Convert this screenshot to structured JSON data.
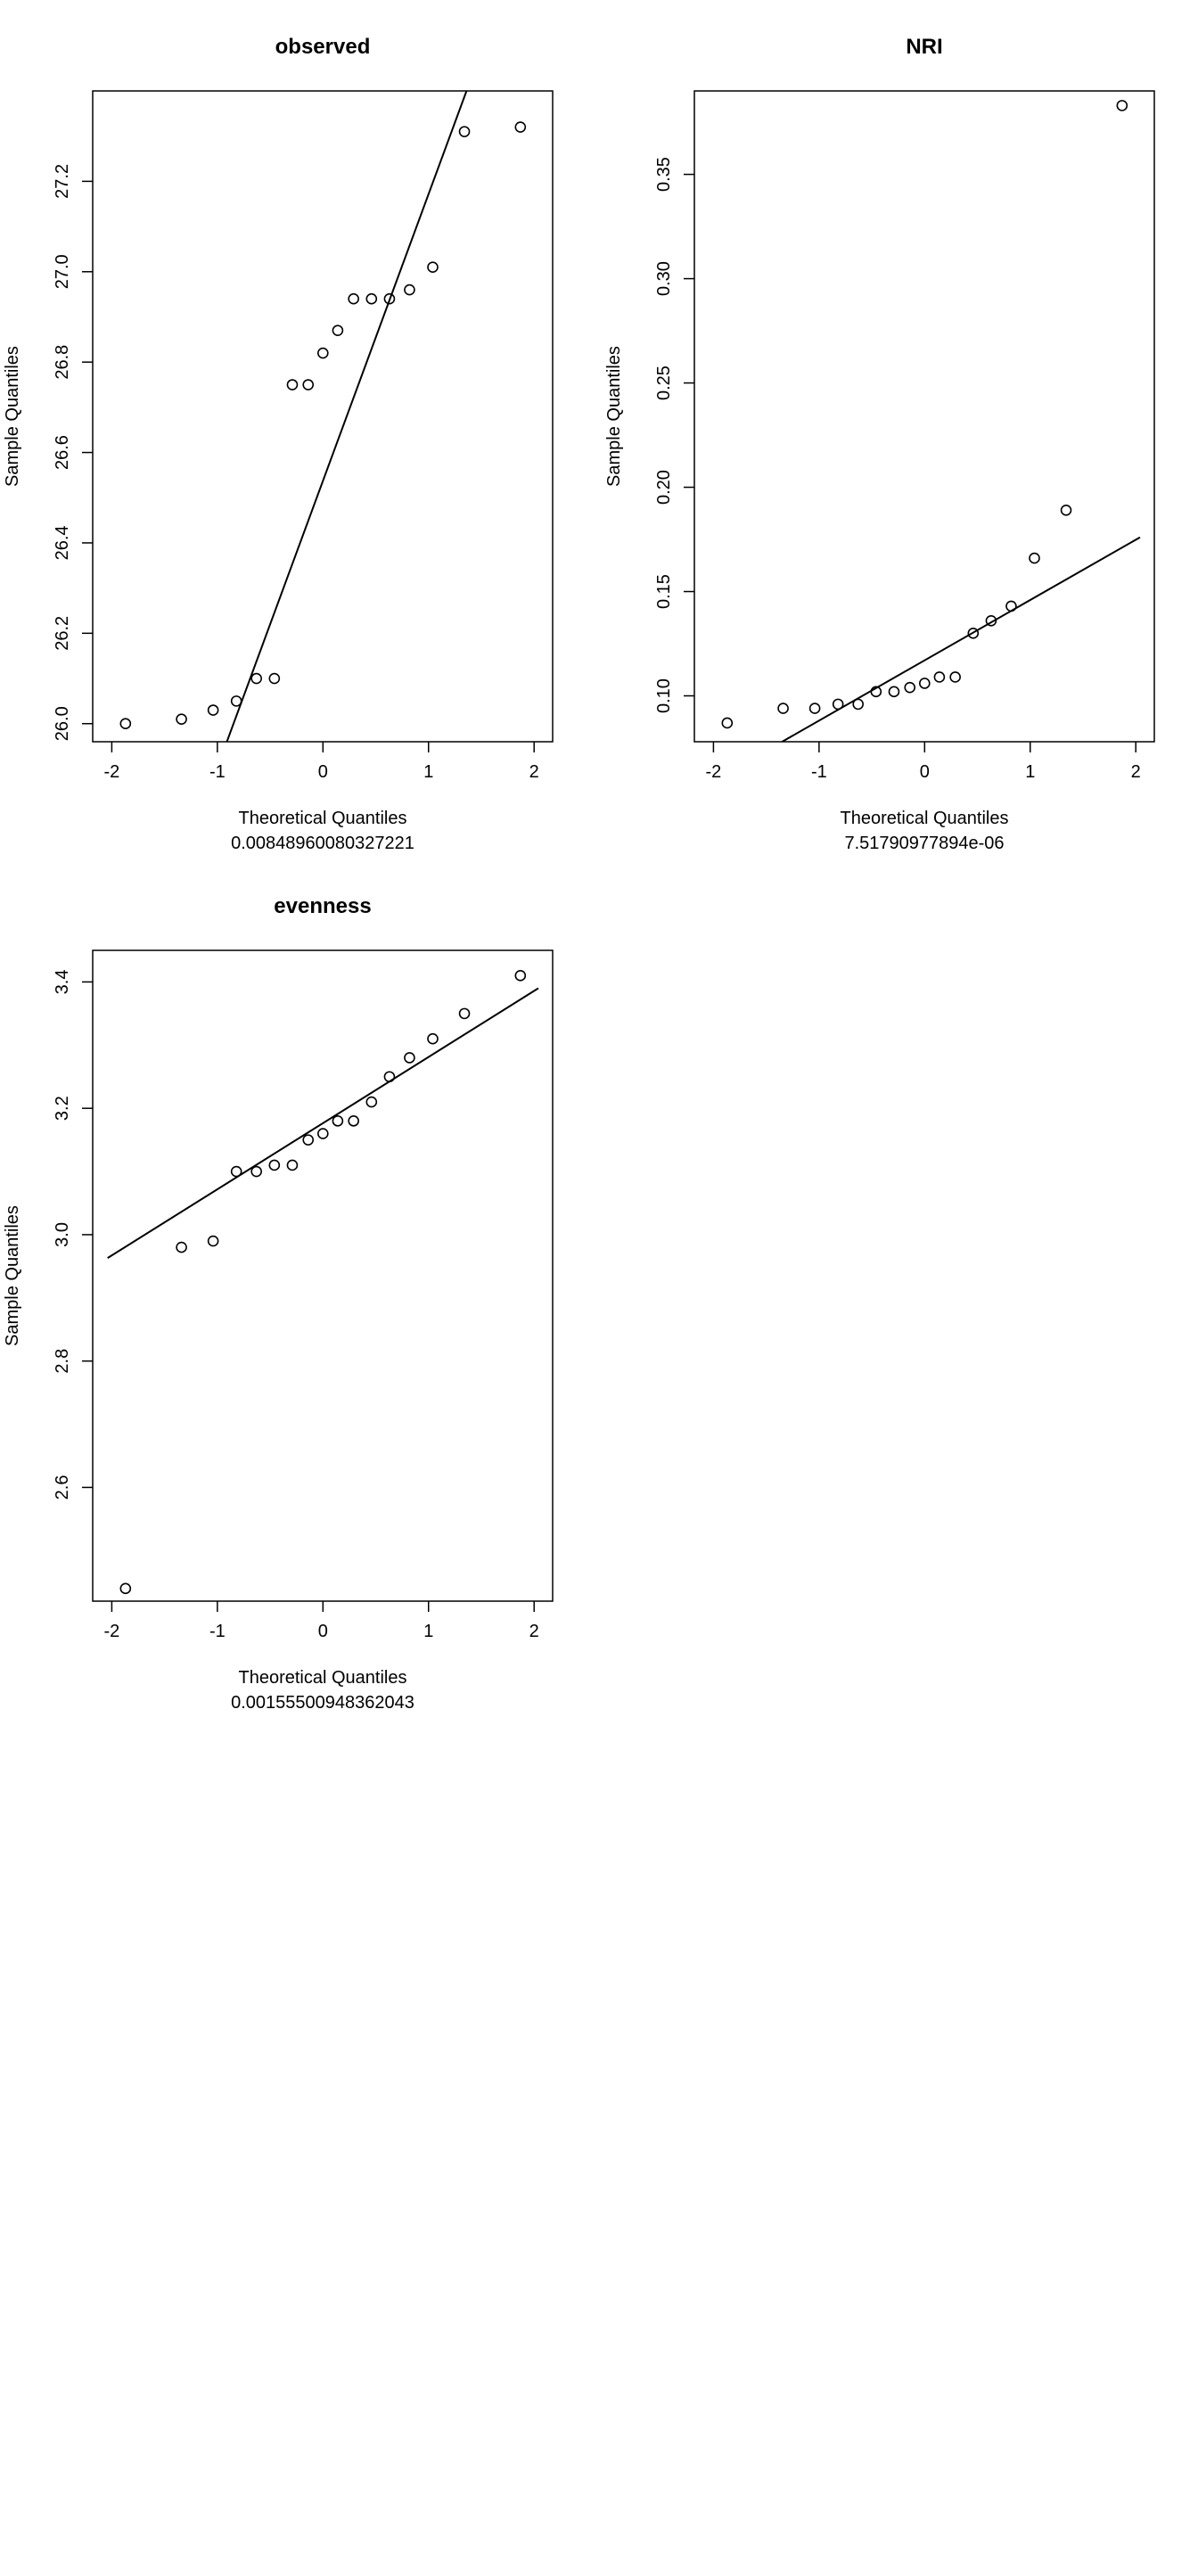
{
  "chart_data": [
    {
      "type": "scatter",
      "title": "observed",
      "xlabel": "Theoretical Quantiles",
      "ylabel": "Sample Quantiles",
      "subtitle": "0.00848960080327221",
      "xlim": [
        -2,
        2
      ],
      "ylim": [
        25.96,
        27.4
      ],
      "xticks": [
        "-2",
        "-1",
        "0",
        "1",
        "2"
      ],
      "yticks": [
        "26.0",
        "26.2",
        "26.4",
        "26.6",
        "26.8",
        "27.0",
        "27.2"
      ],
      "xtick_values": [
        -2,
        -1,
        0,
        1,
        2
      ],
      "ytick_values": [
        26.0,
        26.2,
        26.4,
        26.6,
        26.8,
        27.0,
        27.2
      ],
      "points": {
        "x": [
          -1.87,
          -1.34,
          -1.04,
          -0.82,
          -0.63,
          -0.46,
          -0.29,
          -0.14,
          0.0,
          0.14,
          0.29,
          0.46,
          0.63,
          0.82,
          1.04,
          1.34,
          1.87
        ],
        "y": [
          26.0,
          26.01,
          26.03,
          26.05,
          26.1,
          26.1,
          26.75,
          26.75,
          26.82,
          26.87,
          26.94,
          26.94,
          26.94,
          26.96,
          27.01,
          27.31,
          27.32
        ]
      },
      "qqline": {
        "x": [
          -0.91,
          1.36
        ],
        "y": [
          25.96,
          27.4
        ]
      },
      "grid": false,
      "legend": false
    },
    {
      "type": "scatter",
      "title": "NRI",
      "xlabel": "Theoretical Quantiles",
      "ylabel": "Sample Quantiles",
      "subtitle": "7.51790977894e-06",
      "xlim": [
        -2,
        2
      ],
      "ylim": [
        0.078,
        0.39
      ],
      "xticks": [
        "-2",
        "-1",
        "0",
        "1",
        "2"
      ],
      "yticks": [
        "0.10",
        "0.15",
        "0.20",
        "0.25",
        "0.30",
        "0.35"
      ],
      "xtick_values": [
        -2,
        -1,
        0,
        1,
        2
      ],
      "ytick_values": [
        0.1,
        0.15,
        0.2,
        0.25,
        0.3,
        0.35
      ],
      "points": {
        "x": [
          -1.87,
          -1.34,
          -1.04,
          -0.82,
          -0.63,
          -0.46,
          -0.29,
          -0.14,
          0.0,
          0.14,
          0.29,
          0.46,
          0.63,
          0.82,
          1.04,
          1.34,
          1.87
        ],
        "y": [
          0.087,
          0.094,
          0.094,
          0.096,
          0.096,
          0.102,
          0.102,
          0.104,
          0.106,
          0.109,
          0.109,
          0.13,
          0.136,
          0.143,
          0.166,
          0.189,
          0.383
        ]
      },
      "qqline": {
        "x": [
          -1.35,
          2.04
        ],
        "y": [
          0.078,
          0.176
        ]
      },
      "grid": false,
      "legend": false
    },
    {
      "type": "scatter",
      "title": "evenness",
      "xlabel": "Theoretical Quantiles",
      "ylabel": "Sample Quantiles",
      "subtitle": "0.00155500948362043",
      "xlim": [
        -2,
        2
      ],
      "ylim": [
        2.42,
        3.45
      ],
      "xticks": [
        "-2",
        "-1",
        "0",
        "1",
        "2"
      ],
      "yticks": [
        "2.6",
        "2.8",
        "3.0",
        "3.2",
        "3.4"
      ],
      "xtick_values": [
        -2,
        -1,
        0,
        1,
        2
      ],
      "ytick_values": [
        2.6,
        2.8,
        3.0,
        3.2,
        3.4
      ],
      "points": {
        "x": [
          -1.87,
          -1.34,
          -1.04,
          -0.82,
          -0.63,
          -0.46,
          -0.29,
          -0.14,
          0.0,
          0.14,
          0.29,
          0.46,
          0.63,
          0.82,
          1.04,
          1.34,
          1.87
        ],
        "y": [
          2.44,
          2.98,
          2.99,
          3.1,
          3.1,
          3.11,
          3.11,
          3.15,
          3.16,
          3.18,
          3.18,
          3.21,
          3.25,
          3.28,
          3.31,
          3.35,
          3.41
        ]
      },
      "qqline": {
        "x": [
          -2.04,
          2.04
        ],
        "y": [
          2.963,
          3.39
        ]
      },
      "grid": false,
      "legend": false
    }
  ]
}
